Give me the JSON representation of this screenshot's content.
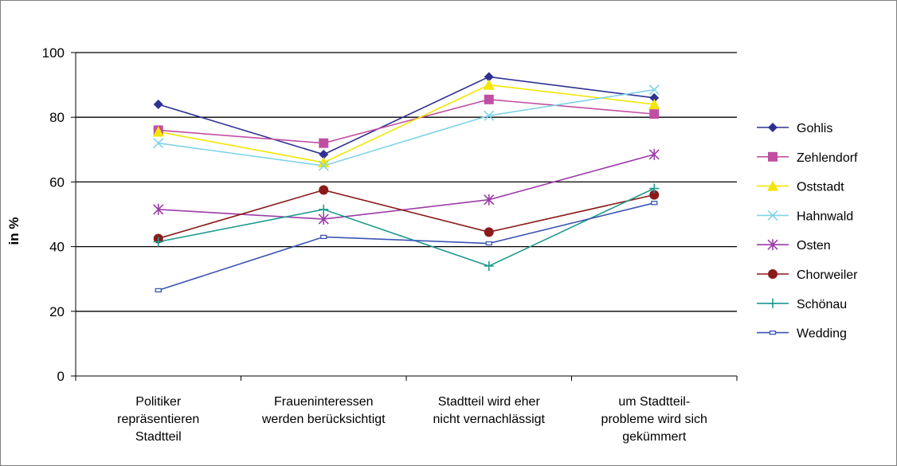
{
  "chart_data": {
    "type": "line",
    "title": "",
    "ylabel": "in %",
    "xlabel": "",
    "ylim": [
      0,
      100
    ],
    "yticks": [
      0,
      20,
      40,
      60,
      80,
      100
    ],
    "grid": "horizontal",
    "legend_position": "right",
    "categories": [
      [
        "Politiker",
        "repräsentieren",
        "Stadtteil"
      ],
      [
        "Fraueninteressen",
        "werden berücksichtigt"
      ],
      [
        "Stadtteil wird eher",
        "nicht vernachlässigt"
      ],
      [
        "um Stadtteil-",
        "probleme wird sich",
        "gekümmert"
      ]
    ],
    "series": [
      {
        "name": "Gohlis",
        "color": "#2e3192",
        "marker": "diamond",
        "values": [
          84,
          68.5,
          92.5,
          86
        ]
      },
      {
        "name": "Zehlendorf",
        "color": "#c04fa4",
        "marker": "square",
        "values": [
          76,
          72,
          85.5,
          81
        ]
      },
      {
        "name": "Oststadt",
        "color": "#f2e600",
        "marker": "triangle",
        "values": [
          75.5,
          66,
          90,
          84
        ]
      },
      {
        "name": "Hahnwald",
        "color": "#7ed3e6",
        "marker": "x",
        "values": [
          72,
          65,
          80.5,
          88.5
        ]
      },
      {
        "name": "Osten",
        "color": "#9b3ba8",
        "marker": "star",
        "values": [
          51.5,
          48.5,
          54.5,
          68.5
        ]
      },
      {
        "name": "Chorweiler",
        "color": "#8b1a1a",
        "marker": "circle",
        "values": [
          42.5,
          57.5,
          44.5,
          56
        ]
      },
      {
        "name": "Schönau",
        "color": "#1f9b8f",
        "marker": "plus",
        "values": [
          41.5,
          51.5,
          34,
          58
        ]
      },
      {
        "name": "Wedding",
        "color": "#3a55b4",
        "marker": "dash",
        "values": [
          26.5,
          43,
          41,
          53.5
        ]
      }
    ]
  }
}
